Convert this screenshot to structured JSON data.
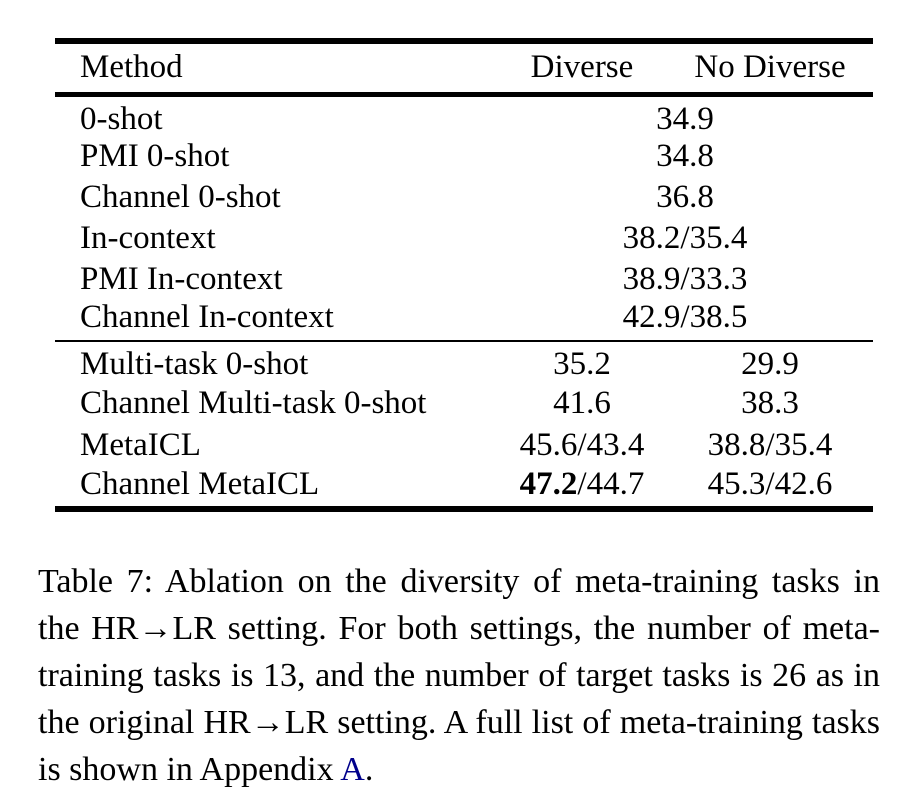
{
  "table": {
    "header": {
      "method": "Method",
      "diverse": "Diverse",
      "no_diverse": "No Diverse"
    },
    "block1": [
      {
        "method": "0-shot",
        "value": "34.9"
      },
      {
        "method": "PMI 0-shot",
        "value": "34.8"
      },
      {
        "method": "Channel 0-shot",
        "value": "36.8"
      },
      {
        "method": "In-context",
        "value": "38.2/35.4"
      },
      {
        "method": "PMI In-context",
        "value": "38.9/33.3"
      },
      {
        "method": "Channel In-context",
        "value": "42.9/38.5"
      }
    ],
    "block2": [
      {
        "method": "Multi-task 0-shot",
        "diverse": "35.2",
        "no_diverse": "29.9"
      },
      {
        "method": "Channel Multi-task 0-shot",
        "diverse": "41.6",
        "no_diverse": "38.3"
      },
      {
        "method": "MetaICL",
        "diverse": "45.6/43.4",
        "no_diverse": "38.8/35.4"
      },
      {
        "method": "Channel MetaICL",
        "diverse_bold": "47.2",
        "diverse_rest": "/44.7",
        "no_diverse": "45.3/42.6"
      }
    ]
  },
  "caption": {
    "text": "Table 7: Ablation on the diversity of meta-training tasks in the HR→LR setting. For both settings, the number of meta-training tasks is 13, and the number of target tasks is 26 as in the original HR→LR setting. A full list of meta-training tasks is shown in Appendix ",
    "link": "A",
    "period": ".",
    "link_color": "#00008B"
  }
}
